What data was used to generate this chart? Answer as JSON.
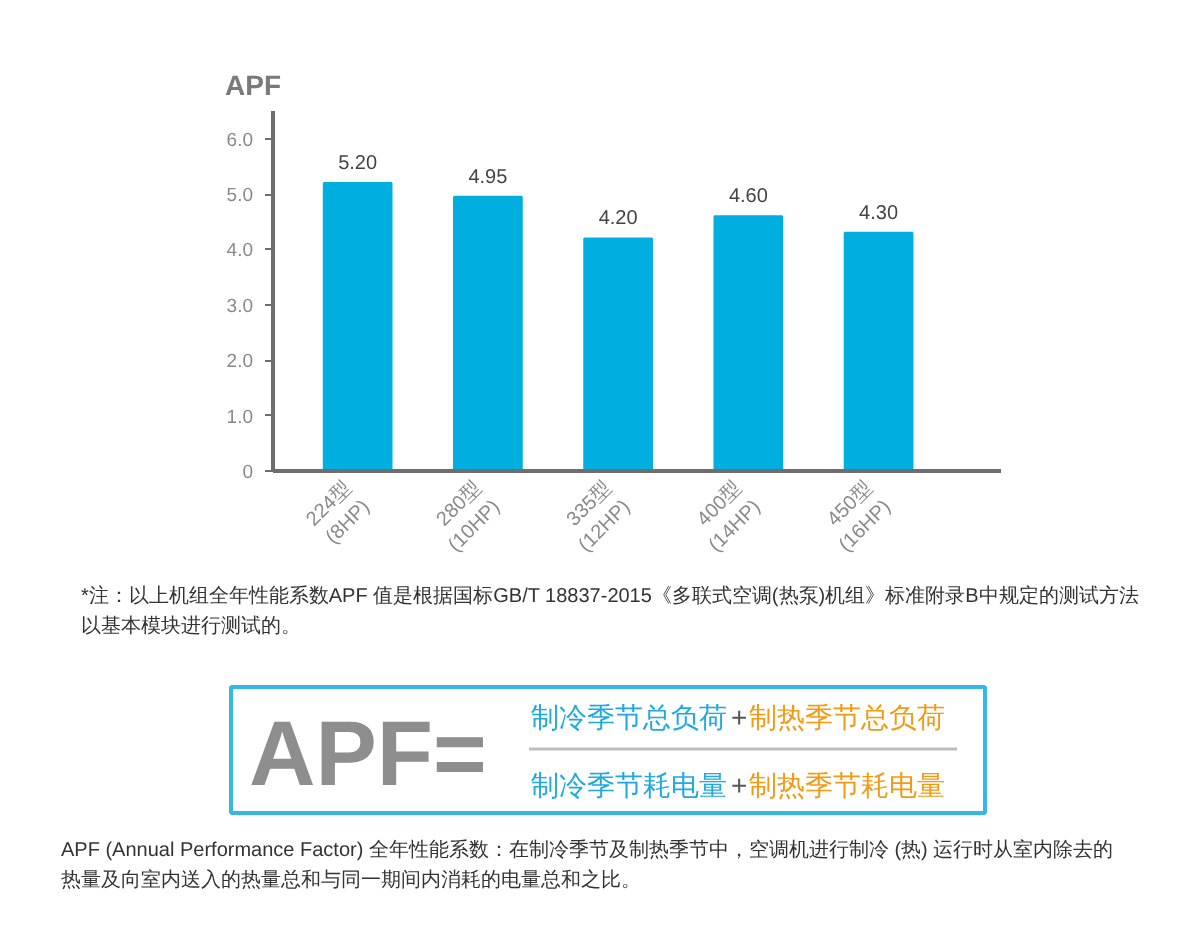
{
  "chart_data": {
    "type": "bar",
    "ylabel": "APF",
    "categories": [
      "224型\n(8HP)",
      "280型\n(10HP)",
      "335型\n(12HP)",
      "400型\n(14HP)",
      "450型\n(16HP)"
    ],
    "values": [
      5.2,
      4.95,
      4.2,
      4.6,
      4.3
    ],
    "value_labels": [
      "5.20",
      "4.95",
      "4.20",
      "4.60",
      "4.30"
    ],
    "color": "#00afdf",
    "ylim": [
      0,
      6.5
    ],
    "yticks": [
      0,
      {
        "value": 1,
        "label": "1.0"
      },
      {
        "value": 2,
        "label": "2.0"
      },
      {
        "value": 3,
        "label": "3.0"
      },
      {
        "value": 4,
        "label": "4.0"
      },
      {
        "value": 5,
        "label": "5.0"
      },
      {
        "value": 6,
        "label": "6.0"
      }
    ],
    "grid": false,
    "annotations": [
      "*注：以上机组全年性能系数APF 值是根据国标GB/T 18837-2015《多联式空调(热泵)机组》标准附录B中规定的测试方法以基本模块进行测试的。",
      "APF=",
      "制冷季节总负荷+制热季节总负荷",
      "制冷季节耗电量+制热季节耗电量",
      "APF (Annual Performance Factor) 全年性能系数：在制冷季节及制热季节中，空调机进行制冷 (热) 运行时从室内除去的热量及向室内送入的热量总和与同一期间内消耗的电量总和之比。"
    ]
  }
}
